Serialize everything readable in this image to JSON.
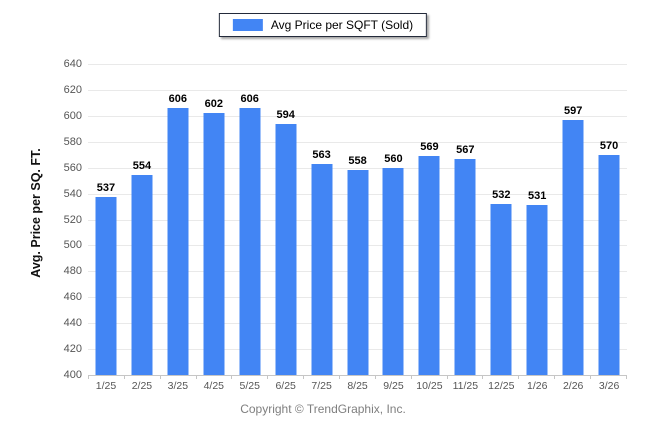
{
  "legend": {
    "label": "Avg Price per SQFT (Sold)"
  },
  "chart_data": {
    "type": "bar",
    "title": "Avg Price per SQFT (Sold)",
    "categories": [
      "1/25",
      "2/25",
      "3/25",
      "4/25",
      "5/25",
      "6/25",
      "7/25",
      "8/25",
      "9/25",
      "10/25",
      "11/25",
      "12/25",
      "1/26",
      "2/26",
      "3/26"
    ],
    "values": [
      537,
      554,
      606,
      602,
      606,
      594,
      563,
      558,
      560,
      569,
      567,
      532,
      531,
      597,
      570
    ],
    "series": [
      {
        "name": "Avg Price per SQFT (Sold)",
        "values": [
          537,
          554,
          606,
          602,
          606,
          594,
          563,
          558,
          560,
          569,
          567,
          532,
          531,
          597,
          570
        ]
      }
    ],
    "xlabel": "",
    "ylabel": "Avg. Price per SQ. FT.",
    "ylim": [
      400,
      640
    ],
    "ytick_step": 20,
    "grid": true,
    "value_labels": true,
    "legend_position": "top",
    "bar_color": "#4285f4"
  },
  "footer": {
    "copyright": "Copyright © TrendGraphix, Inc."
  }
}
